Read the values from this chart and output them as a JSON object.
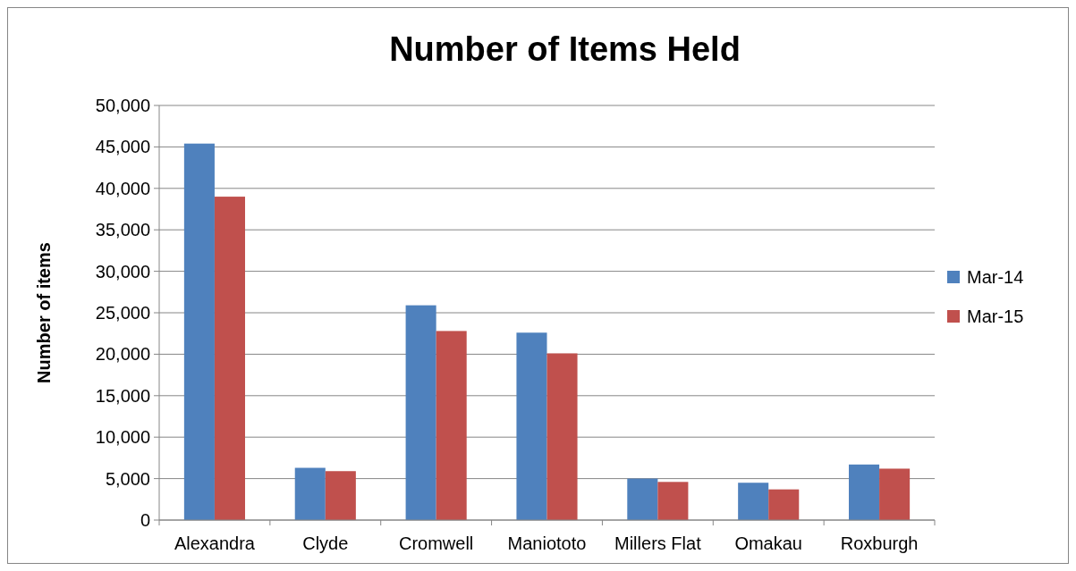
{
  "chart_data": {
    "type": "bar",
    "title": "Number of Items Held",
    "ylabel": "Number of items",
    "categories": [
      "Alexandra",
      "Clyde",
      "Cromwell",
      "Maniototo",
      "Millers Flat",
      "Omakau",
      "Roxburgh"
    ],
    "series": [
      {
        "name": "Mar-14",
        "color": "#4f81bd",
        "values": [
          45400,
          6300,
          25900,
          22600,
          5000,
          4500,
          6700
        ]
      },
      {
        "name": "Mar-15",
        "color": "#c0504d",
        "values": [
          39000,
          5900,
          22800,
          20100,
          4600,
          3700,
          6200
        ]
      }
    ],
    "ylim": [
      0,
      50000
    ],
    "yticks": [
      {
        "value": 0,
        "label": "0"
      },
      {
        "value": 5000,
        "label": "5,000"
      },
      {
        "value": 10000,
        "label": "10,000"
      },
      {
        "value": 15000,
        "label": "15,000"
      },
      {
        "value": 20000,
        "label": "20,000"
      },
      {
        "value": 25000,
        "label": "25,000"
      },
      {
        "value": 30000,
        "label": "30,000"
      },
      {
        "value": 35000,
        "label": "35,000"
      },
      {
        "value": 40000,
        "label": "40,000"
      },
      {
        "value": 45000,
        "label": "45,000"
      },
      {
        "value": 50000,
        "label": "50,000"
      }
    ],
    "grid": "y",
    "legend": "right"
  }
}
